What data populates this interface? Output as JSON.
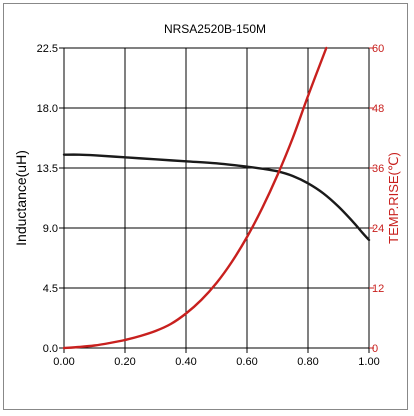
{
  "chart_data": {
    "type": "line",
    "title": "NRSA2520B-150M",
    "ylabel": "Inductance(uH)",
    "y2label": "TEMP.RISE(℃)",
    "xlim": [
      0.0,
      1.0
    ],
    "ylim": [
      0.0,
      22.5
    ],
    "y2lim": [
      0,
      60
    ],
    "x_ticks": [
      "0.00",
      "0.20",
      "0.40",
      "0.60",
      "0.80",
      "1.00"
    ],
    "x_tick_values": [
      0.0,
      0.2,
      0.4,
      0.6,
      0.8,
      1.0
    ],
    "y_ticks": [
      "0.0",
      "4.5",
      "9.0",
      "13.5",
      "18.0",
      "22.5"
    ],
    "y_tick_values": [
      0.0,
      4.5,
      9.0,
      13.5,
      18.0,
      22.5
    ],
    "y2_ticks": [
      "0",
      "12",
      "24",
      "36",
      "48",
      "60"
    ],
    "y2_tick_values": [
      0,
      12,
      24,
      36,
      48,
      60
    ],
    "grid": true,
    "legend": "none",
    "series": [
      {
        "axis": "left",
        "color": "#1a1a1a",
        "x": [
          0.0,
          0.05,
          0.1,
          0.2,
          0.3,
          0.4,
          0.5,
          0.6,
          0.65,
          0.7,
          0.75,
          0.8,
          0.85,
          0.9,
          0.95,
          0.98,
          1.0
        ],
        "y": [
          14.5,
          14.5,
          14.45,
          14.3,
          14.15,
          14.0,
          13.85,
          13.6,
          13.45,
          13.25,
          12.9,
          12.35,
          11.6,
          10.6,
          9.4,
          8.6,
          8.1
        ]
      },
      {
        "axis": "right",
        "color": "#c8201e",
        "x": [
          0.0,
          0.05,
          0.1,
          0.15,
          0.2,
          0.25,
          0.3,
          0.35,
          0.4,
          0.45,
          0.5,
          0.55,
          0.6,
          0.65,
          0.7,
          0.75,
          0.8,
          0.86
        ],
        "y": [
          0.0,
          0.2,
          0.5,
          1.0,
          1.6,
          2.4,
          3.4,
          4.8,
          6.9,
          9.6,
          13.0,
          17.2,
          22.2,
          28.0,
          34.6,
          42.0,
          50.4,
          60.0
        ]
      }
    ]
  }
}
